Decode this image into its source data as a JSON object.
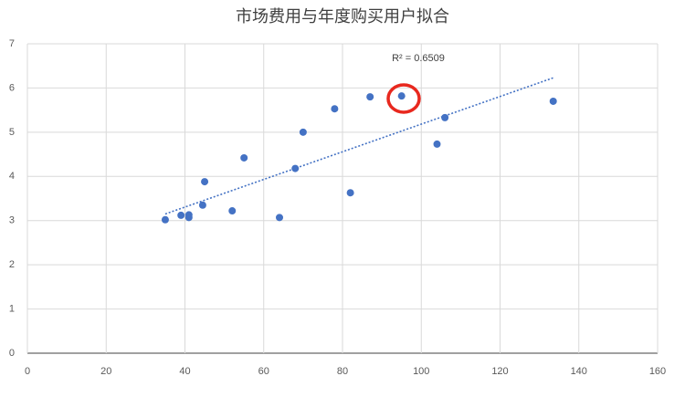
{
  "chart_data": {
    "type": "scatter",
    "title": "市场费用与年度购买用户拟合",
    "x": [
      35,
      39,
      41,
      41,
      44.5,
      45,
      52,
      55,
      64,
      68,
      70,
      78,
      82,
      87,
      95,
      104,
      106,
      133.5
    ],
    "values": [
      3.02,
      3.12,
      3.13,
      3.07,
      3.35,
      3.88,
      3.22,
      4.42,
      3.07,
      4.18,
      5.0,
      5.53,
      3.63,
      5.8,
      5.82,
      4.73,
      5.33,
      5.7
    ],
    "color": "#4472c4",
    "trendline": {
      "x": [
        35,
        133.5
      ],
      "values": [
        3.15,
        6.23
      ],
      "color": "#4472c4"
    },
    "annotation": "R² = 0.6509",
    "xlim": [
      0,
      160
    ],
    "xticks": [
      0,
      20,
      40,
      60,
      80,
      100,
      120,
      140,
      160
    ],
    "ylim": [
      0,
      7
    ],
    "yticks": [
      0,
      1,
      2,
      3,
      4,
      5,
      6,
      7
    ],
    "grid": true
  }
}
